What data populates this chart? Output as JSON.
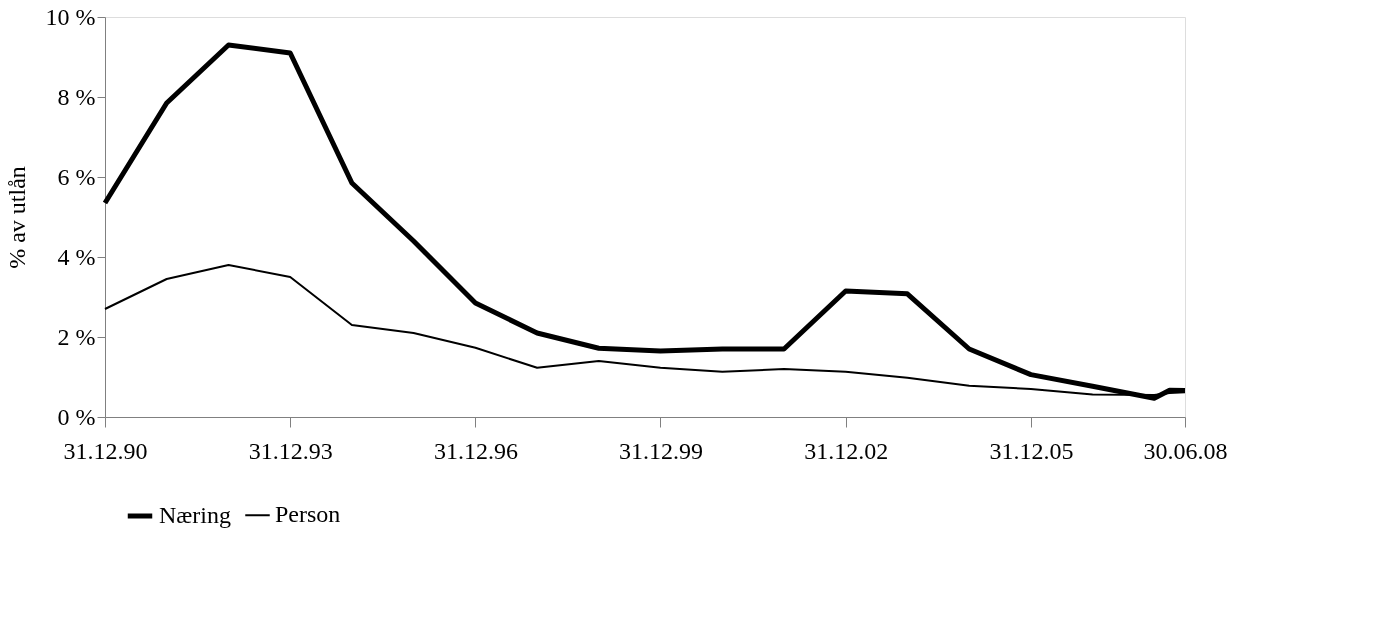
{
  "chart_data": {
    "type": "line",
    "ylabel": "% av utlån",
    "x": [
      "1990-12-31",
      "1991-12-31",
      "1992-12-31",
      "1993-12-31",
      "1994-12-31",
      "1995-12-31",
      "1996-12-31",
      "1997-12-31",
      "1998-12-31",
      "1999-12-31",
      "2000-12-31",
      "2001-12-31",
      "2002-12-31",
      "2003-12-31",
      "2004-12-31",
      "2005-12-31",
      "2006-12-31",
      "2007-12-31",
      "2008-03-31",
      "2008-06-30"
    ],
    "series": [
      {
        "name": "Næring",
        "color": "#000000",
        "values": [
          5.35,
          7.85,
          9.3,
          9.1,
          5.85,
          4.4,
          2.85,
          2.1,
          1.72,
          1.65,
          1.7,
          1.7,
          3.15,
          3.08,
          1.7,
          1.06,
          0.77,
          0.47,
          0.67,
          0.66
        ]
      },
      {
        "name": "Person",
        "color": "#000000",
        "values": [
          2.7,
          3.45,
          3.8,
          3.5,
          2.3,
          2.1,
          1.73,
          1.23,
          1.4,
          1.23,
          1.13,
          1.2,
          1.13,
          0.98,
          0.78,
          0.7,
          0.56,
          0.55,
          0.6,
          0.62
        ]
      }
    ],
    "xlim": [
      "1990-12-31",
      "2008-06-30"
    ],
    "xticks": [
      {
        "value": "1990-12-31",
        "label": "31.12.90"
      },
      {
        "value": "1993-12-31",
        "label": "31.12.93"
      },
      {
        "value": "1996-12-31",
        "label": "31.12.96"
      },
      {
        "value": "1999-12-31",
        "label": "31.12.99"
      },
      {
        "value": "2002-12-31",
        "label": "31.12.02"
      },
      {
        "value": "2005-12-31",
        "label": "31.12.05"
      },
      {
        "value": "2008-06-30",
        "label": "30.06.08"
      }
    ],
    "ylim": [
      0,
      10
    ],
    "yticks": [
      {
        "value": 0,
        "label": "0 %"
      },
      {
        "value": 2,
        "label": "2 %"
      },
      {
        "value": 4,
        "label": "4 %"
      },
      {
        "value": 6,
        "label": "6 %"
      },
      {
        "value": 8,
        "label": "8 %"
      },
      {
        "value": 10,
        "label": "10 %"
      }
    ],
    "grid": false,
    "legend": "bottom",
    "line_style": "solid",
    "marker": "none"
  }
}
